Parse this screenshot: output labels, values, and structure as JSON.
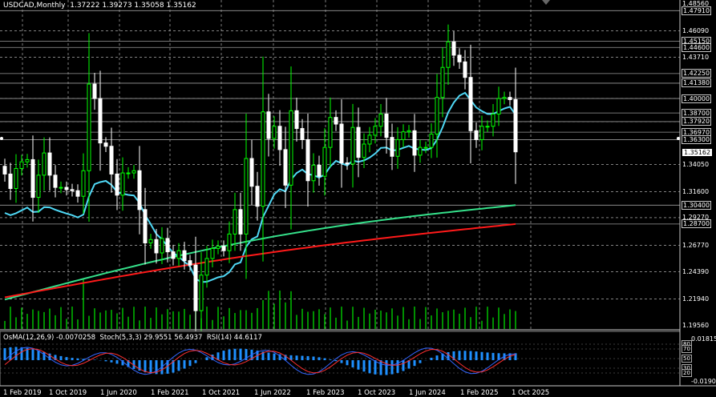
{
  "title": {
    "symbol": "USDCAD,Monthly",
    "open": "1.37222",
    "high": "1.39273",
    "low": "1.35058",
    "close": "1.35162"
  },
  "price_axis": [
    {
      "label": "1.48560",
      "value": 1.4856,
      "style": "plain"
    },
    {
      "label": "1.47910",
      "value": 1.4791,
      "style": "boxed"
    },
    {
      "label": "1.46090",
      "value": 1.4609,
      "style": "plain"
    },
    {
      "label": "1.45150",
      "value": 1.4515,
      "style": "boxed"
    },
    {
      "label": "1.44600",
      "value": 1.446,
      "style": "boxed"
    },
    {
      "label": "1.43710",
      "value": 1.4371,
      "style": "plain"
    },
    {
      "label": "1.42250",
      "value": 1.4225,
      "style": "boxed"
    },
    {
      "label": "1.41380",
      "value": 1.4138,
      "style": "boxed"
    },
    {
      "label": "1.40000",
      "value": 1.4,
      "style": "boxed"
    },
    {
      "label": "1.38700",
      "value": 1.387,
      "style": "boxed"
    },
    {
      "label": "1.37920",
      "value": 1.3792,
      "style": "boxed"
    },
    {
      "label": "1.36970",
      "value": 1.3697,
      "style": "boxed"
    },
    {
      "label": "1.36300",
      "value": 1.363,
      "style": "boxed"
    },
    {
      "label": "1.35162",
      "value": 1.35162,
      "style": "current"
    },
    {
      "label": "1.34050",
      "value": 1.3405,
      "style": "plain"
    },
    {
      "label": "1.31600",
      "value": 1.316,
      "style": "plain"
    },
    {
      "label": "1.30400",
      "value": 1.304,
      "style": "boxed"
    },
    {
      "label": "1.29270",
      "value": 1.2927,
      "style": "plain"
    },
    {
      "label": "1.28700",
      "value": 1.287,
      "style": "boxed"
    },
    {
      "label": "1.26770",
      "value": 1.2677,
      "style": "plain"
    },
    {
      "label": "1.24390",
      "value": 1.2439,
      "style": "plain"
    },
    {
      "label": "1.21940",
      "value": 1.2194,
      "style": "plain"
    },
    {
      "label": "1.19560",
      "value": 1.1956,
      "style": "plain"
    }
  ],
  "time_axis": [
    "1 Feb 2019",
    "1 Oct 2019",
    "1 Jun 2020",
    "1 Feb 2021",
    "1 Oct 2021",
    "1 Jun 2022",
    "1 Feb 2023",
    "1 Oct 2023",
    "1 Jun 2024",
    "1 Feb 2025",
    "1 Oct 2025"
  ],
  "indicator": {
    "osma_label": "OsMA(12,26,9) -0.0070258",
    "stoch_label": "Stoch(5,3,3) 29.9551 56.4937",
    "rsi_label": "RSI(14) 44.6117",
    "axis_max": "0.018153",
    "axis_min": "-0.019066",
    "levels": [
      {
        "label": "80",
        "value": 80
      },
      {
        "label": "70",
        "value": 70
      },
      {
        "label": "50",
        "value": 50
      },
      {
        "label": "30",
        "value": 30
      },
      {
        "label": "20",
        "value": 20
      }
    ]
  },
  "colors": {
    "background": "#000000",
    "bull_candle": "#00ff00",
    "bear_candle": "#ffffff",
    "ma_fast": "#4fd8f5",
    "ma_mid": "#35e08a",
    "ma_slow": "#ff1a1a",
    "volume": "#00cc00",
    "osma_hist": "#1e90ff",
    "stoch_main": "#3366ff",
    "stoch_signal": "#ff3030",
    "grid": "#cfcfcf",
    "hline": "#9a9a9a"
  },
  "chart_data": {
    "type": "candlestick",
    "timeframe": "Monthly",
    "closes": [
      1.332,
      1.319,
      1.337,
      1.343,
      1.345,
      1.311,
      1.331,
      1.351,
      1.331,
      1.32,
      1.32,
      1.318,
      1.317,
      1.312,
      1.335,
      1.413,
      1.4,
      1.36,
      1.357,
      1.332,
      1.313,
      1.333,
      1.333,
      1.335,
      1.3,
      1.27,
      1.273,
      1.261,
      1.274,
      1.262,
      1.256,
      1.263,
      1.254,
      1.25,
      1.209,
      1.241,
      1.256,
      1.265,
      1.267,
      1.263,
      1.278,
      1.3,
      1.278,
      1.346,
      1.321,
      1.303,
      1.388,
      1.364,
      1.375,
      1.354,
      1.322,
      1.389,
      1.373,
      1.363,
      1.326,
      1.34,
      1.33,
      1.356,
      1.383,
      1.377,
      1.342,
      1.341,
      1.374,
      1.347,
      1.359,
      1.367,
      1.375,
      1.386,
      1.365,
      1.348,
      1.363,
      1.37,
      1.371,
      1.349,
      1.356,
      1.356,
      1.368,
      1.401,
      1.428,
      1.451,
      1.439,
      1.433,
      1.419,
      1.371,
      1.363,
      1.375,
      1.375,
      1.386,
      1.4,
      1.401,
      1.399,
      1.352
    ],
    "ma_fast_ends": [
      1.297,
      1.358
    ],
    "ma_mid_ends": [
      1.219,
      1.304
    ],
    "ma_slow_ends": [
      1.221,
      1.287
    ]
  }
}
